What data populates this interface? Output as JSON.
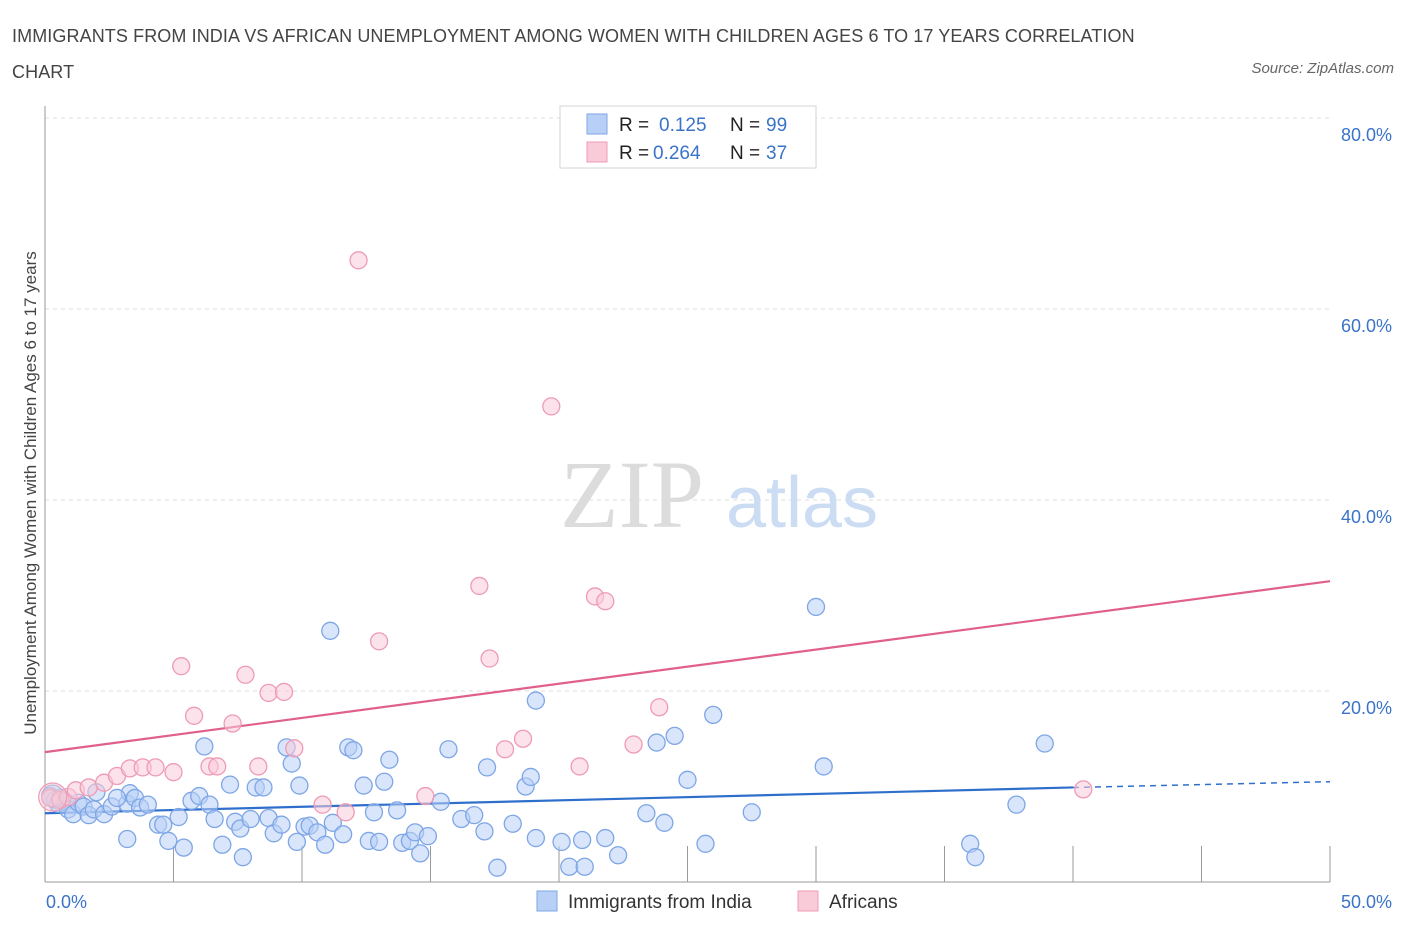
{
  "title": "IMMIGRANTS FROM INDIA VS AFRICAN UNEMPLOYMENT AMONG WOMEN WITH CHILDREN AGES 6 TO 17 YEARS CORRELATION CHART",
  "source": "Source: ZipAtlas.com",
  "watermark": {
    "zip": "ZIP",
    "atlas": "atlas"
  },
  "colors": {
    "blue_fill": "#b8d0f5",
    "blue_stroke": "#7ea6e6",
    "blue_line": "#2f6fcc",
    "pink_fill": "#f9cbd8",
    "pink_stroke": "#ee9bb5",
    "pink_line": "#e0608a",
    "tick_text": "#3a73c8",
    "grid": "#dddddd"
  },
  "legend": {
    "rows": [
      {
        "r_label": "R =",
        "r_value": "0.125",
        "n_label": "N =",
        "n_value": "99",
        "color": "blue"
      },
      {
        "r_label": "R =",
        "r_value": "0.264",
        "n_label": "N =",
        "n_value": "37",
        "color": "pink"
      }
    ]
  },
  "bottom_legend": [
    "Immigrants from India",
    "Africans"
  ],
  "chart_data": {
    "type": "scatter",
    "title": "IMMIGRANTS FROM INDIA VS AFRICAN UNEMPLOYMENT AMONG WOMEN WITH CHILDREN AGES 6 TO 17 YEARS CORRELATION CHART",
    "xlabel": "",
    "ylabel": "Unemployment Among Women with Children Ages 6 to 17 years",
    "xlim": [
      0,
      50
    ],
    "ylim": [
      0,
      80
    ],
    "x_tick_labels": [
      "0.0%",
      "50.0%"
    ],
    "y_ticks": [
      20,
      40,
      60,
      80
    ],
    "y_tick_labels": [
      "20.0%",
      "40.0%",
      "60.0%",
      "80.0%"
    ],
    "grid": true,
    "legend_placement": "top-center",
    "series": [
      {
        "name": "Immigrants from India",
        "color": "blue",
        "trend": {
          "x": [
            0,
            40
          ],
          "y": [
            7.2,
            9.9
          ],
          "dashed_to_x": 50,
          "dashed_to_y": 10.5
        },
        "points": [
          [
            0.2,
            9.0
          ],
          [
            0.4,
            8.6
          ],
          [
            0.5,
            8.2
          ],
          [
            0.6,
            8.8
          ],
          [
            0.8,
            8.4
          ],
          [
            0.9,
            7.6
          ],
          [
            1.1,
            7.1
          ],
          [
            1.3,
            8.3
          ],
          [
            1.5,
            7.9
          ],
          [
            1.7,
            7.0
          ],
          [
            1.9,
            7.6
          ],
          [
            2.0,
            9.4
          ],
          [
            2.3,
            7.1
          ],
          [
            2.6,
            7.9
          ],
          [
            3.2,
            8.2
          ],
          [
            3.3,
            9.3
          ],
          [
            3.5,
            8.8
          ],
          [
            3.7,
            7.8
          ],
          [
            4.0,
            8.1
          ],
          [
            3.2,
            4.5
          ],
          [
            4.4,
            6.0
          ],
          [
            4.6,
            6.0
          ],
          [
            4.8,
            4.3
          ],
          [
            5.2,
            6.8
          ],
          [
            5.4,
            3.6
          ],
          [
            5.7,
            8.5
          ],
          [
            6.0,
            9.0
          ],
          [
            6.2,
            14.2
          ],
          [
            6.4,
            8.1
          ],
          [
            6.6,
            6.6
          ],
          [
            6.9,
            3.9
          ],
          [
            7.2,
            10.2
          ],
          [
            7.4,
            6.3
          ],
          [
            7.6,
            5.6
          ],
          [
            7.7,
            2.6
          ],
          [
            8.0,
            6.6
          ],
          [
            8.2,
            9.9
          ],
          [
            8.5,
            9.9
          ],
          [
            8.7,
            6.7
          ],
          [
            8.9,
            5.1
          ],
          [
            9.2,
            6.0
          ],
          [
            9.4,
            14.1
          ],
          [
            9.6,
            12.4
          ],
          [
            9.8,
            4.2
          ],
          [
            9.9,
            10.1
          ],
          [
            10.1,
            5.8
          ],
          [
            10.3,
            5.9
          ],
          [
            10.6,
            5.2
          ],
          [
            10.9,
            3.9
          ],
          [
            11.2,
            6.2
          ],
          [
            11.1,
            26.3
          ],
          [
            11.6,
            5.0
          ],
          [
            11.8,
            14.1
          ],
          [
            12.0,
            13.8
          ],
          [
            12.4,
            10.1
          ],
          [
            12.6,
            4.3
          ],
          [
            12.8,
            7.3
          ],
          [
            13.0,
            4.2
          ],
          [
            13.2,
            10.5
          ],
          [
            13.4,
            12.8
          ],
          [
            13.7,
            7.5
          ],
          [
            13.9,
            4.1
          ],
          [
            14.2,
            4.3
          ],
          [
            14.4,
            5.2
          ],
          [
            14.6,
            3.0
          ],
          [
            14.9,
            4.8
          ],
          [
            15.4,
            8.4
          ],
          [
            15.7,
            13.9
          ],
          [
            16.2,
            6.6
          ],
          [
            16.7,
            7.0
          ],
          [
            17.1,
            5.3
          ],
          [
            17.2,
            12.0
          ],
          [
            17.6,
            1.5
          ],
          [
            18.2,
            6.1
          ],
          [
            18.7,
            10.0
          ],
          [
            18.9,
            11.0
          ],
          [
            19.1,
            4.6
          ],
          [
            19.1,
            19.0
          ],
          [
            20.1,
            4.2
          ],
          [
            20.4,
            1.6
          ],
          [
            20.9,
            4.4
          ],
          [
            21.0,
            1.6
          ],
          [
            21.8,
            4.6
          ],
          [
            22.3,
            2.8
          ],
          [
            23.4,
            7.2
          ],
          [
            23.8,
            14.6
          ],
          [
            24.5,
            15.3
          ],
          [
            24.1,
            6.2
          ],
          [
            25.0,
            10.7
          ],
          [
            25.7,
            4.0
          ],
          [
            26.0,
            17.5
          ],
          [
            27.5,
            7.3
          ],
          [
            30.0,
            28.8
          ],
          [
            30.3,
            12.1
          ],
          [
            36.0,
            4.0
          ],
          [
            36.2,
            2.6
          ],
          [
            37.8,
            8.1
          ],
          [
            38.9,
            14.5
          ],
          [
            2.8,
            8.8
          ]
        ]
      },
      {
        "name": "Africans",
        "color": "pink",
        "trend": {
          "x": [
            0,
            50
          ],
          "y": [
            13.6,
            31.5
          ]
        },
        "points": [
          [
            0.2,
            8.8
          ],
          [
            0.6,
            8.6
          ],
          [
            0.9,
            8.9
          ],
          [
            1.2,
            9.6
          ],
          [
            1.7,
            9.9
          ],
          [
            2.3,
            10.4
          ],
          [
            2.8,
            11.1
          ],
          [
            3.3,
            11.9
          ],
          [
            3.8,
            12.0
          ],
          [
            4.3,
            12.0
          ],
          [
            5.0,
            11.5
          ],
          [
            5.3,
            22.6
          ],
          [
            5.8,
            17.4
          ],
          [
            6.4,
            12.1
          ],
          [
            6.7,
            12.1
          ],
          [
            7.3,
            16.6
          ],
          [
            7.8,
            21.7
          ],
          [
            8.3,
            12.1
          ],
          [
            8.7,
            19.8
          ],
          [
            9.3,
            19.9
          ],
          [
            9.7,
            14.0
          ],
          [
            10.8,
            8.1
          ],
          [
            11.7,
            7.3
          ],
          [
            12.2,
            65.1
          ],
          [
            13.0,
            25.2
          ],
          [
            14.8,
            9.0
          ],
          [
            16.9,
            31.0
          ],
          [
            17.3,
            23.4
          ],
          [
            17.9,
            13.9
          ],
          [
            18.6,
            15.0
          ],
          [
            19.7,
            49.8
          ],
          [
            20.8,
            12.1
          ],
          [
            21.4,
            29.9
          ],
          [
            21.8,
            29.4
          ],
          [
            22.9,
            14.4
          ],
          [
            23.9,
            18.3
          ],
          [
            40.4,
            9.7
          ]
        ]
      }
    ]
  }
}
